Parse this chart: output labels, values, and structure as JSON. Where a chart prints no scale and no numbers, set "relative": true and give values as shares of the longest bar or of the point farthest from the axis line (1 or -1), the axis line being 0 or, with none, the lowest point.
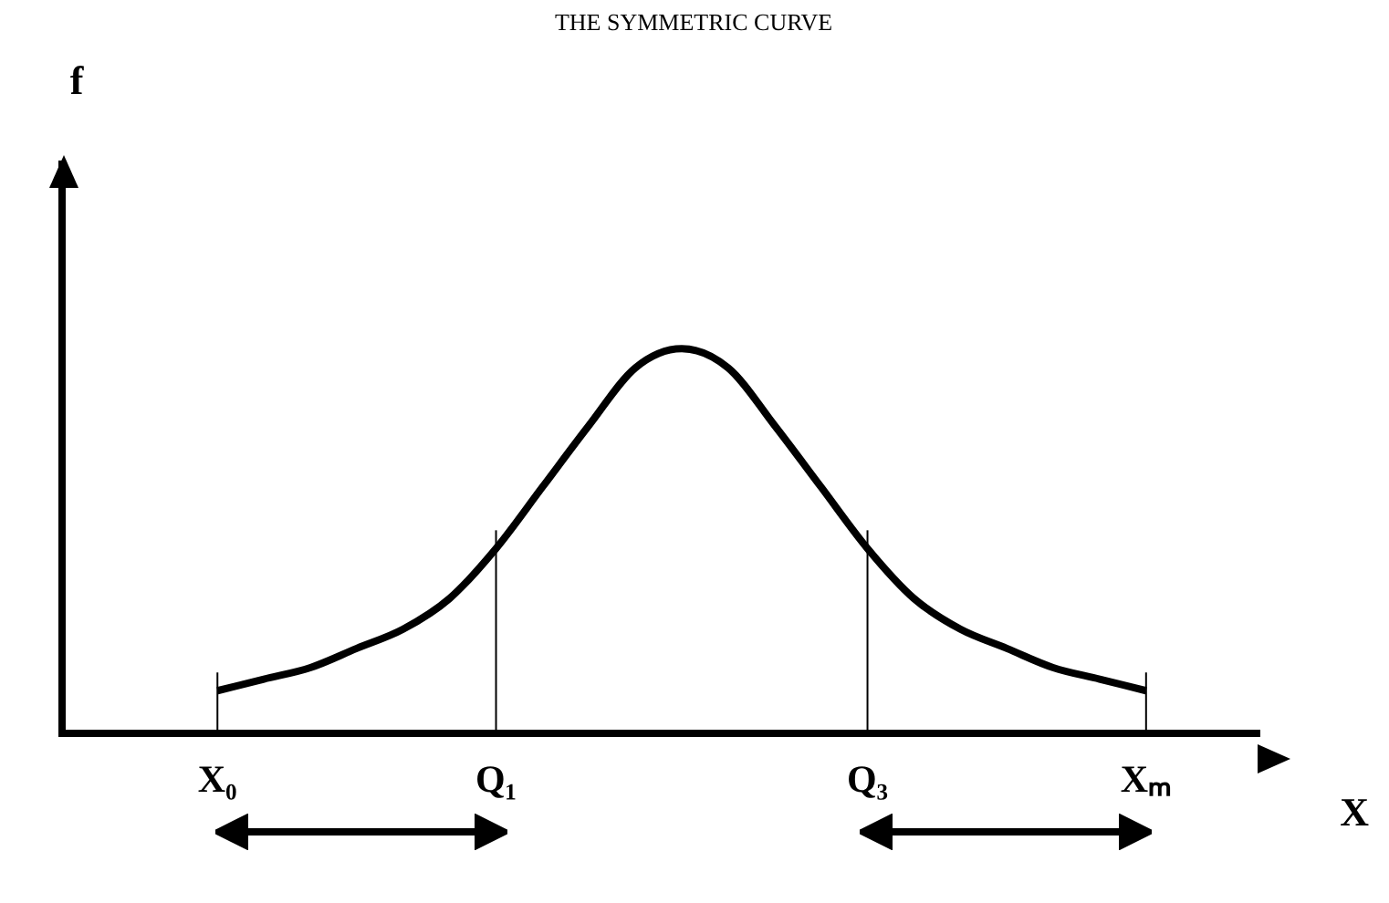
{
  "chart_data": {
    "type": "line",
    "title": "THE SYMMETRIC CURVE",
    "xlabel": "X",
    "annotations": [
      "f"
    ],
    "relative": true,
    "color": "#000000",
    "marker": "none",
    "line_style": "solid",
    "grid": false,
    "legend": false,
    "tick_labels": "x",
    "categories": [
      "X₀",
      null,
      null,
      null,
      null,
      null,
      "Q₁",
      null,
      null,
      null,
      null,
      null,
      null,
      null,
      "Q₃",
      null,
      null,
      null,
      null,
      null,
      "Xₘ"
    ],
    "values": [
      0.11,
      0.14,
      0.17,
      0.22,
      0.27,
      0.35,
      0.48,
      0.64,
      0.8,
      0.95,
      1,
      0.95,
      0.8,
      0.64,
      0.48,
      0.35,
      0.27,
      0.22,
      0.17,
      0.14,
      0.11
    ],
    "ref_lines": [
      {
        "axis": "x",
        "value": "X₀"
      },
      {
        "axis": "x",
        "value": "Q₁"
      },
      {
        "axis": "x",
        "value": "Q₃"
      },
      {
        "axis": "x",
        "value": "Xₘ"
      }
    ]
  }
}
